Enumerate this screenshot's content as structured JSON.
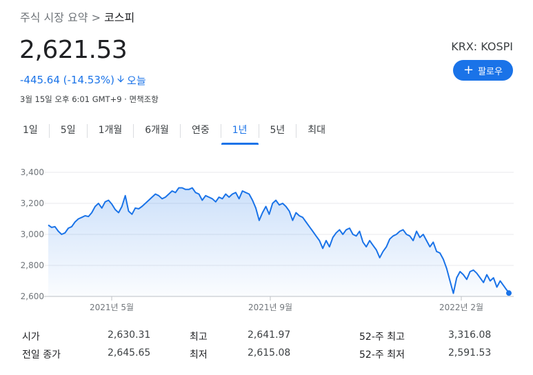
{
  "breadcrumb": {
    "parent": "주식 시장 요약 > ",
    "current": "코스피"
  },
  "quote": {
    "price": "2,621.53",
    "change": "-445.64 (-14.53%)",
    "period_label": "오늘",
    "timestamp": "3월 15일 오후 6:01 GMT+9 · 면책조항",
    "ticker": "KRX: KOSPI"
  },
  "follow_button": {
    "label": "팔로우"
  },
  "tabs": [
    {
      "label": "1일"
    },
    {
      "label": "5일"
    },
    {
      "label": "1개월"
    },
    {
      "label": "6개월"
    },
    {
      "label": "연중"
    },
    {
      "label": "1년",
      "active": true
    },
    {
      "label": "5년"
    },
    {
      "label": "최대"
    }
  ],
  "chart_data": {
    "type": "area",
    "y_ticks": [
      "3,400",
      "3,200",
      "3,000",
      "2,800",
      "2,600"
    ],
    "x_ticks": [
      "2021년 5월",
      "2021년 9월",
      "2022년 2월"
    ],
    "ylim": [
      2600,
      3400
    ],
    "line_color": "#1a73e8",
    "series": [
      {
        "values": [
          3060,
          3045,
          3050,
          3020,
          3000,
          3010,
          3040,
          3050,
          3080,
          3100,
          3110,
          3120,
          3115,
          3140,
          3180,
          3200,
          3170,
          3210,
          3220,
          3195,
          3160,
          3140,
          3180,
          3250,
          3150,
          3130,
          3170,
          3165,
          3180,
          3200,
          3220,
          3240,
          3260,
          3250,
          3230,
          3240,
          3260,
          3280,
          3270,
          3300,
          3300,
          3290,
          3290,
          3300,
          3270,
          3260,
          3220,
          3250,
          3240,
          3230,
          3210,
          3240,
          3230,
          3260,
          3240,
          3260,
          3270,
          3230,
          3280,
          3270,
          3260,
          3220,
          3170,
          3090,
          3140,
          3180,
          3130,
          3200,
          3220,
          3190,
          3200,
          3180,
          3150,
          3090,
          3140,
          3120,
          3110,
          3080,
          3050,
          3020,
          2990,
          2960,
          2910,
          2960,
          2920,
          2980,
          3010,
          3030,
          3000,
          3030,
          3040,
          3000,
          2990,
          3020,
          2950,
          2920,
          2960,
          2930,
          2900,
          2850,
          2890,
          2920,
          2970,
          2990,
          3000,
          3020,
          3030,
          3000,
          2990,
          2960,
          3020,
          2980,
          3000,
          2960,
          2920,
          2950,
          2890,
          2880,
          2840,
          2780,
          2700,
          2620,
          2720,
          2760,
          2740,
          2710,
          2760,
          2770,
          2750,
          2720,
          2690,
          2740,
          2700,
          2720,
          2660,
          2700,
          2670,
          2640,
          2621.53
        ]
      }
    ]
  },
  "stats": [
    {
      "label": "시가",
      "value": "2,630.31",
      "label2": "최고",
      "value2": "2,641.97",
      "label3": "52-주 최고",
      "value3": "3,316.08"
    },
    {
      "label": "전일 종가",
      "value": "2,645.65",
      "label2": "최저",
      "value2": "2,615.08",
      "label3": "52-주 최저",
      "value3": "2,591.53"
    }
  ]
}
